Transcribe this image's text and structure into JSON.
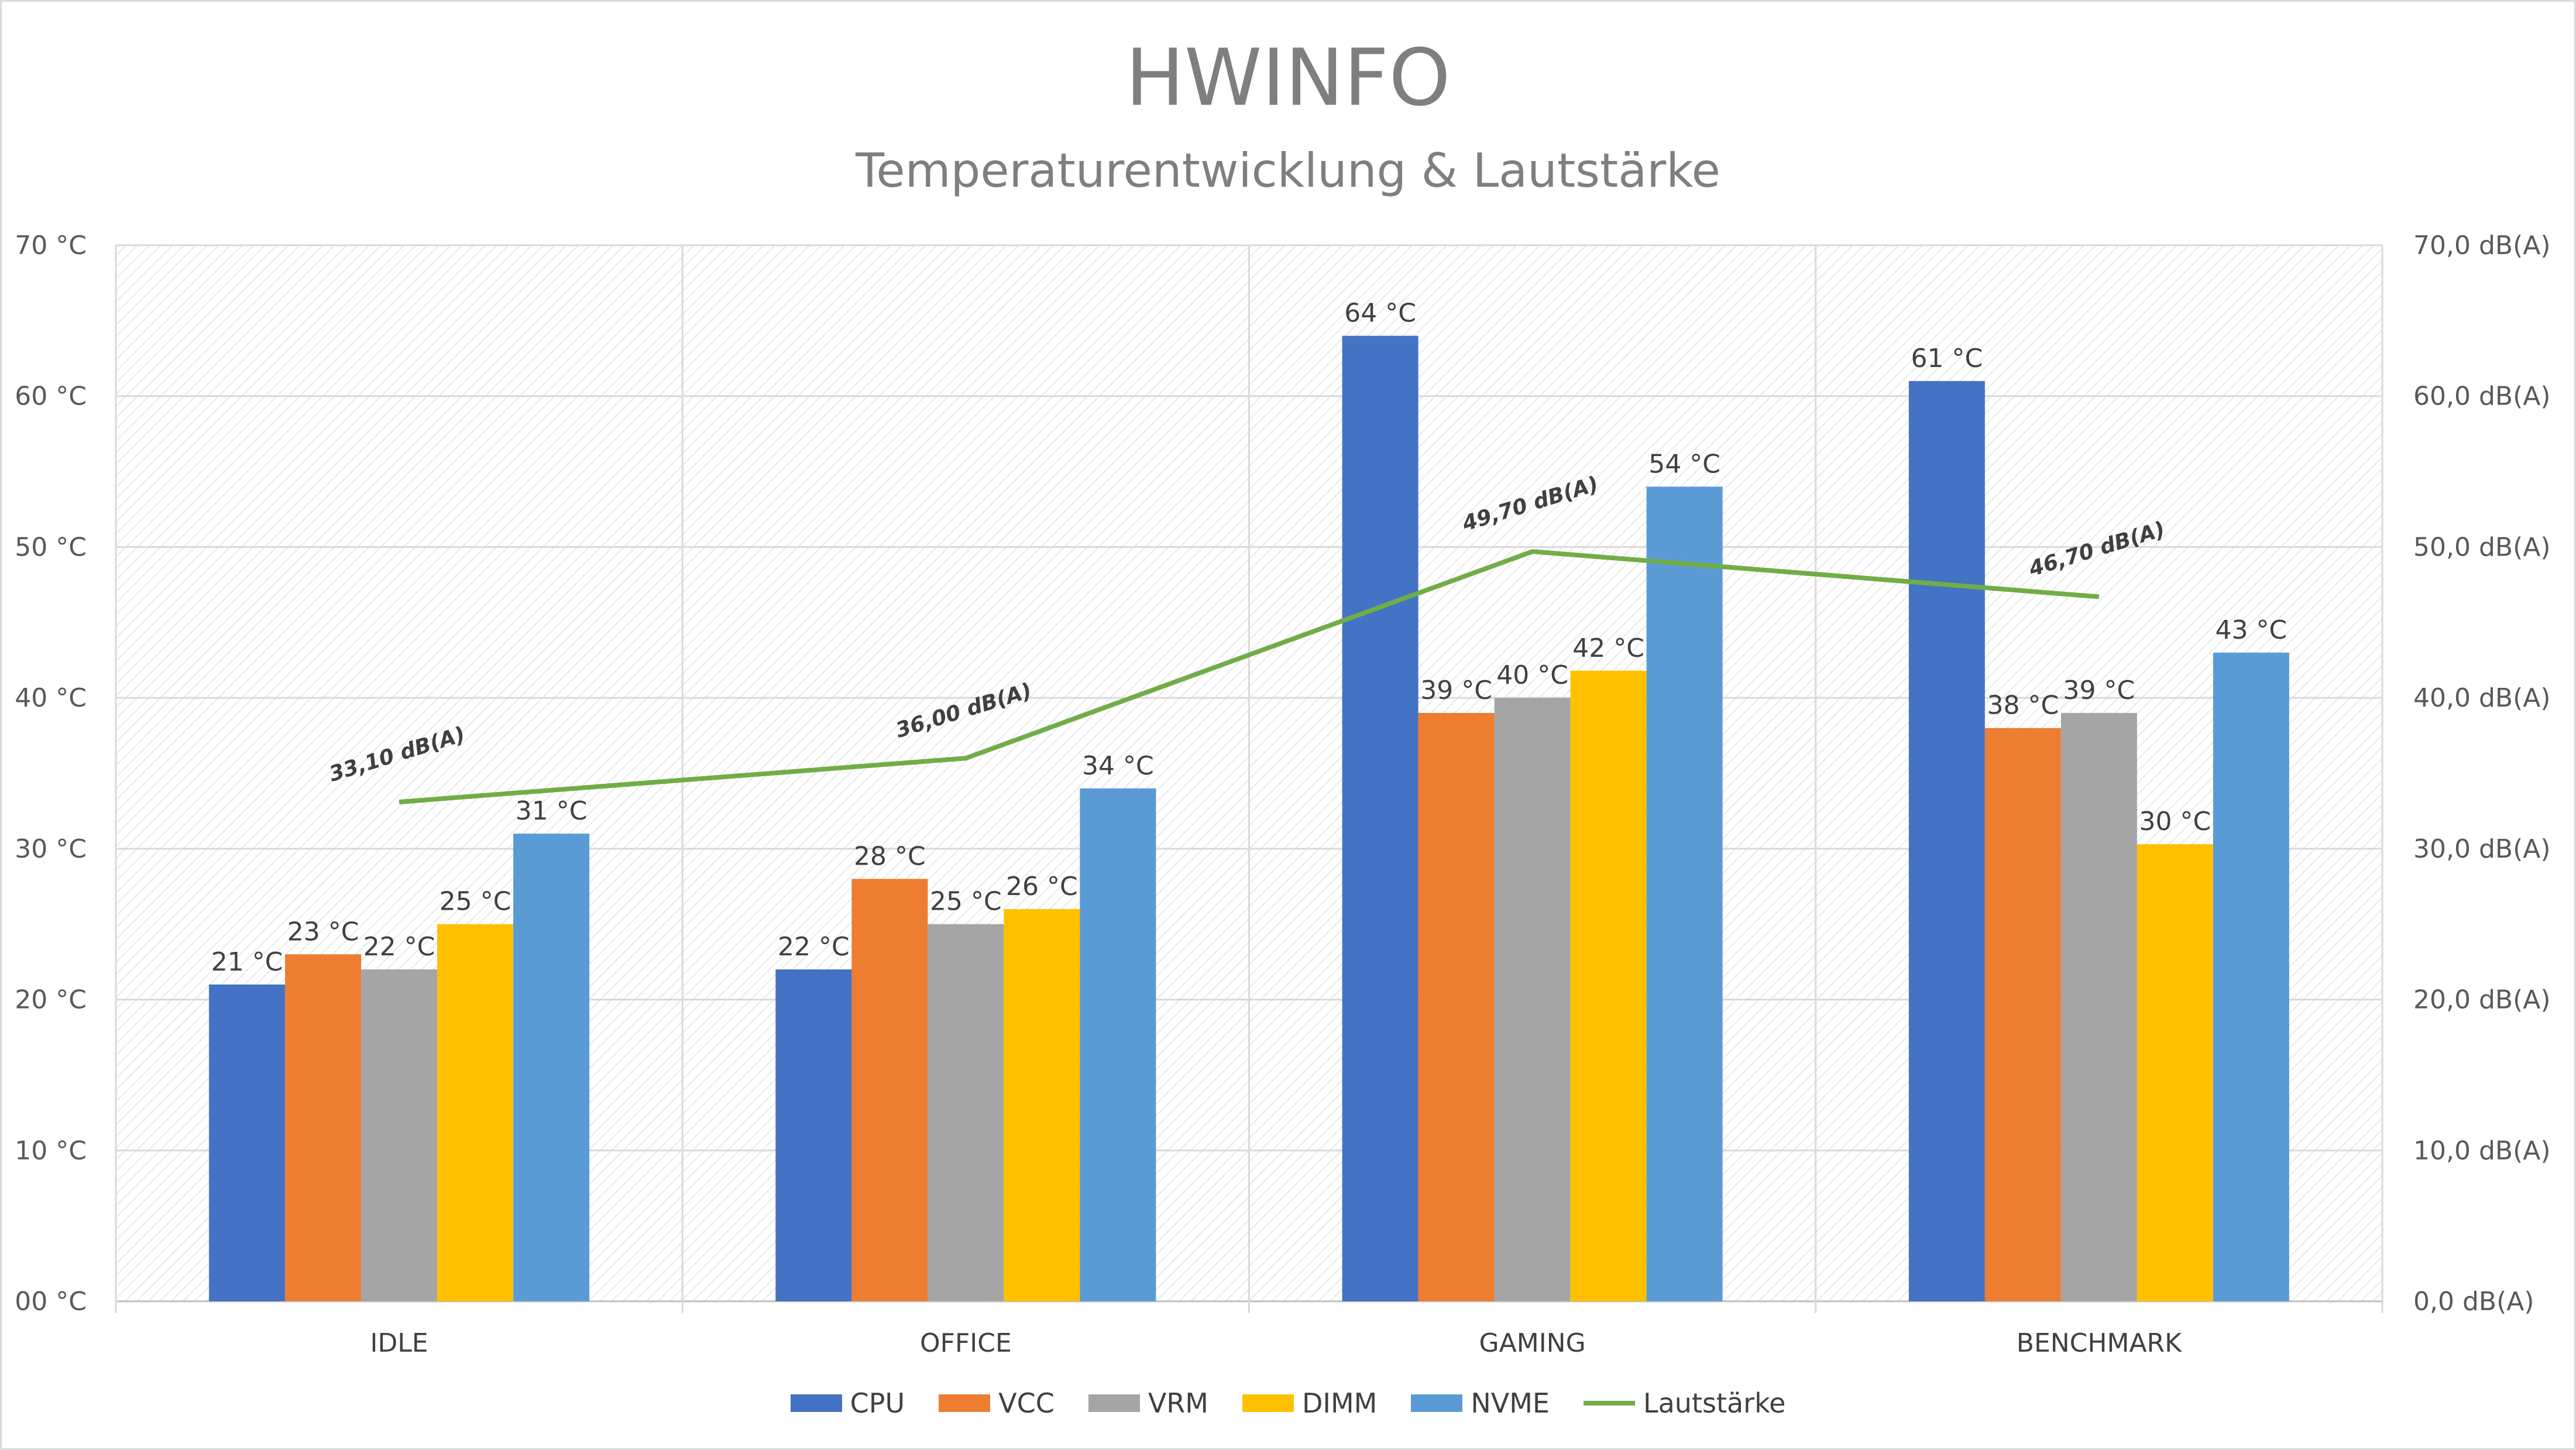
{
  "chart_data": {
    "type": "bar",
    "title": "HWINFO",
    "subtitle": "Temperaturentwicklung & Lautstärke",
    "categories": [
      "IDLE",
      "OFFICE",
      "GAMING",
      "BENCHMARK"
    ],
    "series": [
      {
        "name": "CPU",
        "color": "#4472c4",
        "values": [
          21,
          22,
          64,
          61
        ],
        "labels": [
          "21 °C",
          "22 °C",
          "64 °C",
          "61 °C"
        ]
      },
      {
        "name": "VCC",
        "color": "#ed7d31",
        "values": [
          23,
          28,
          39,
          38
        ],
        "labels": [
          "23 °C",
          "28 °C",
          "39 °C",
          "38 °C"
        ]
      },
      {
        "name": "VRM",
        "color": "#a5a5a5",
        "values": [
          22,
          25,
          40,
          39
        ],
        "labels": [
          "22 °C",
          "25 °C",
          "40 °C",
          "39 °C"
        ]
      },
      {
        "name": "DIMM",
        "color": "#ffc000",
        "values": [
          25,
          26,
          41.8,
          30.3
        ],
        "labels": [
          "25 °C",
          "26 °C",
          "42 °C",
          "30 °C"
        ]
      },
      {
        "name": "NVME",
        "color": "#5b9bd5",
        "values": [
          31,
          34,
          54,
          43
        ],
        "labels": [
          "31 °C",
          "34 °C",
          "54 °C",
          "43 °C"
        ]
      }
    ],
    "line_series": {
      "name": "Lautstärke",
      "color": "#70ad47",
      "values": [
        33.1,
        36.0,
        49.7,
        46.7
      ],
      "labels": [
        "33,10  dB(A)",
        "36,00  dB(A)",
        "49,70  dB(A)",
        "46,70  dB(A)"
      ]
    },
    "y_left": {
      "ylim": [
        0,
        70
      ],
      "ticks": [
        "00 °C",
        "10 °C",
        "20 °C",
        "30 °C",
        "40 °C",
        "50 °C",
        "60 °C",
        "70 °C"
      ]
    },
    "y_right": {
      "ylim": [
        0,
        70
      ],
      "ticks": [
        "0,0  dB(A)",
        "10,0  dB(A)",
        "20,0  dB(A)",
        "30,0  dB(A)",
        "40,0  dB(A)",
        "50,0  dB(A)",
        "60,0  dB(A)",
        "70,0  dB(A)"
      ]
    },
    "grid": true,
    "legend": "bottom"
  }
}
